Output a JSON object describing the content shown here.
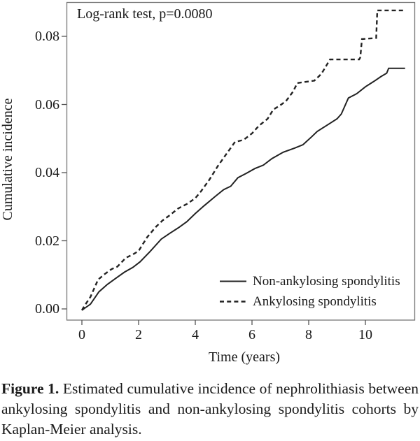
{
  "figure": {
    "annotation": "Log-rank test, p=0.0080",
    "y_axis_title": "Cumulative incidence",
    "x_axis_title": "Time (years)",
    "legend": {
      "entries": [
        {
          "label": "Non-ankylosing spondylitis",
          "style": "solid"
        },
        {
          "label": "Ankylosing spondylitis",
          "style": "dashed"
        }
      ]
    }
  },
  "caption": {
    "label": "Figure 1.",
    "text": " Estimated cumulative incidence of nephrolithiasis between ankylosing spondylitis and non-ankylosing spondylitis cohorts by Kaplan-Meier analysis."
  },
  "chart_data": {
    "type": "line",
    "subtype": "kaplan-meier-cumulative-incidence",
    "title": "",
    "annotation": "Log-rank test, p=0.0080",
    "xlabel": "Time (years)",
    "ylabel": "Cumulative incidence",
    "xlim": [
      -0.55,
      11.75
    ],
    "ylim": [
      -0.0033,
      0.0901
    ],
    "x_ticks": [
      0,
      2,
      4,
      6,
      8,
      10
    ],
    "y_ticks": [
      0.0,
      0.02,
      0.04,
      0.06,
      0.08
    ],
    "grid": false,
    "legend_position": "inside-bottom-right",
    "line_color": "#222222",
    "frame_color": "#777777",
    "series": [
      {
        "name": "Non-ankylosing spondylitis",
        "line": "solid",
        "points": [
          [
            0,
            -0.0004
          ],
          [
            0.1,
            0.0002
          ],
          [
            0.3,
            0.0014
          ],
          [
            0.6,
            0.005
          ],
          [
            0.9,
            0.0072
          ],
          [
            1.2,
            0.009
          ],
          [
            1.5,
            0.0108
          ],
          [
            1.8,
            0.0122
          ],
          [
            2.05,
            0.0138
          ],
          [
            2.4,
            0.0168
          ],
          [
            2.8,
            0.0205
          ],
          [
            3.1,
            0.0222
          ],
          [
            3.4,
            0.0238
          ],
          [
            3.7,
            0.0256
          ],
          [
            4.0,
            0.028
          ],
          [
            4.3,
            0.0302
          ],
          [
            4.7,
            0.033
          ],
          [
            5.0,
            0.035
          ],
          [
            5.25,
            0.036
          ],
          [
            5.5,
            0.0385
          ],
          [
            5.8,
            0.0398
          ],
          [
            6.1,
            0.0412
          ],
          [
            6.4,
            0.0422
          ],
          [
            6.7,
            0.0441
          ],
          [
            7.1,
            0.046
          ],
          [
            7.5,
            0.0472
          ],
          [
            7.8,
            0.0482
          ],
          [
            8.1,
            0.0505
          ],
          [
            8.3,
            0.0521
          ],
          [
            8.7,
            0.0542
          ],
          [
            9.0,
            0.0558
          ],
          [
            9.15,
            0.0572
          ],
          [
            9.4,
            0.0619
          ],
          [
            9.7,
            0.0632
          ],
          [
            10.0,
            0.0652
          ],
          [
            10.3,
            0.0668
          ],
          [
            10.55,
            0.0682
          ],
          [
            10.75,
            0.0692
          ],
          [
            10.82,
            0.0706
          ],
          [
            11.4,
            0.0706
          ]
        ]
      },
      {
        "name": "Ankylosing spondylitis",
        "line": "dashed",
        "points": [
          [
            0,
            -0.0004
          ],
          [
            0.1,
            0.001
          ],
          [
            0.3,
            0.0035
          ],
          [
            0.57,
            0.0086
          ],
          [
            0.8,
            0.0102
          ],
          [
            1.05,
            0.0117
          ],
          [
            1.25,
            0.0124
          ],
          [
            1.55,
            0.015
          ],
          [
            1.8,
            0.016
          ],
          [
            2.0,
            0.017
          ],
          [
            2.3,
            0.021
          ],
          [
            2.6,
            0.024
          ],
          [
            2.85,
            0.026
          ],
          [
            3.1,
            0.0275
          ],
          [
            3.4,
            0.0295
          ],
          [
            3.7,
            0.0308
          ],
          [
            4.0,
            0.0325
          ],
          [
            4.2,
            0.0345
          ],
          [
            4.5,
            0.038
          ],
          [
            4.8,
            0.042
          ],
          [
            5.1,
            0.0455
          ],
          [
            5.4,
            0.049
          ],
          [
            5.7,
            0.0496
          ],
          [
            6.0,
            0.0515
          ],
          [
            6.25,
            0.0538
          ],
          [
            6.55,
            0.0558
          ],
          [
            6.75,
            0.0585
          ],
          [
            7.0,
            0.0598
          ],
          [
            7.2,
            0.061
          ],
          [
            7.45,
            0.0638
          ],
          [
            7.6,
            0.0663
          ],
          [
            8.2,
            0.067
          ],
          [
            8.45,
            0.069
          ],
          [
            8.75,
            0.0732
          ],
          [
            9.78,
            0.0732
          ],
          [
            9.82,
            0.0738
          ],
          [
            9.88,
            0.0792
          ],
          [
            10.38,
            0.0795
          ],
          [
            10.42,
            0.0876
          ],
          [
            11.4,
            0.0876
          ]
        ]
      }
    ]
  }
}
